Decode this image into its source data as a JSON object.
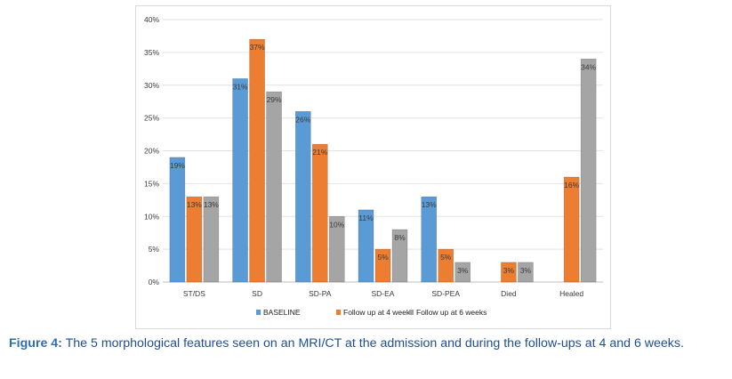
{
  "chart_data": {
    "type": "bar",
    "categories": [
      "ST/DS",
      "SD",
      "SD-PA",
      "SD-EA",
      "SD-PEA",
      "Died",
      "Healed"
    ],
    "series": [
      {
        "name": "BASELINE",
        "color": "#5b9bd5",
        "values": [
          19,
          31,
          26,
          11,
          13,
          null,
          null
        ],
        "labels": [
          "19%",
          "31%",
          "26%",
          "11%",
          "13%",
          "",
          ""
        ]
      },
      {
        "name": "Follow up at 4 weeks",
        "color": "#ed7d31",
        "values": [
          13,
          37,
          21,
          5,
          5,
          3,
          16
        ],
        "labels": [
          "13%",
          "37%",
          "21%",
          "5%",
          "5%",
          "3%",
          "16%"
        ]
      },
      {
        "name": "Follow up at 6 weeks",
        "color": "#a5a5a5",
        "values": [
          13,
          29,
          10,
          8,
          3,
          3,
          34
        ],
        "labels": [
          "13%",
          "29%",
          "10%",
          "8%",
          "3%",
          "3%",
          "34%"
        ]
      }
    ],
    "yticks": [
      "0%",
      "5%",
      "10%",
      "15%",
      "20%",
      "25%",
      "30%",
      "35%",
      "40%"
    ],
    "ylim": [
      0,
      40
    ],
    "grid": true,
    "legend_position": "bottom"
  },
  "caption": {
    "label": "Figure 4:",
    "text": "The 5 morphological features seen on an MRI/CT at the admission and during the follow-ups at 4 and 6 weeks."
  }
}
